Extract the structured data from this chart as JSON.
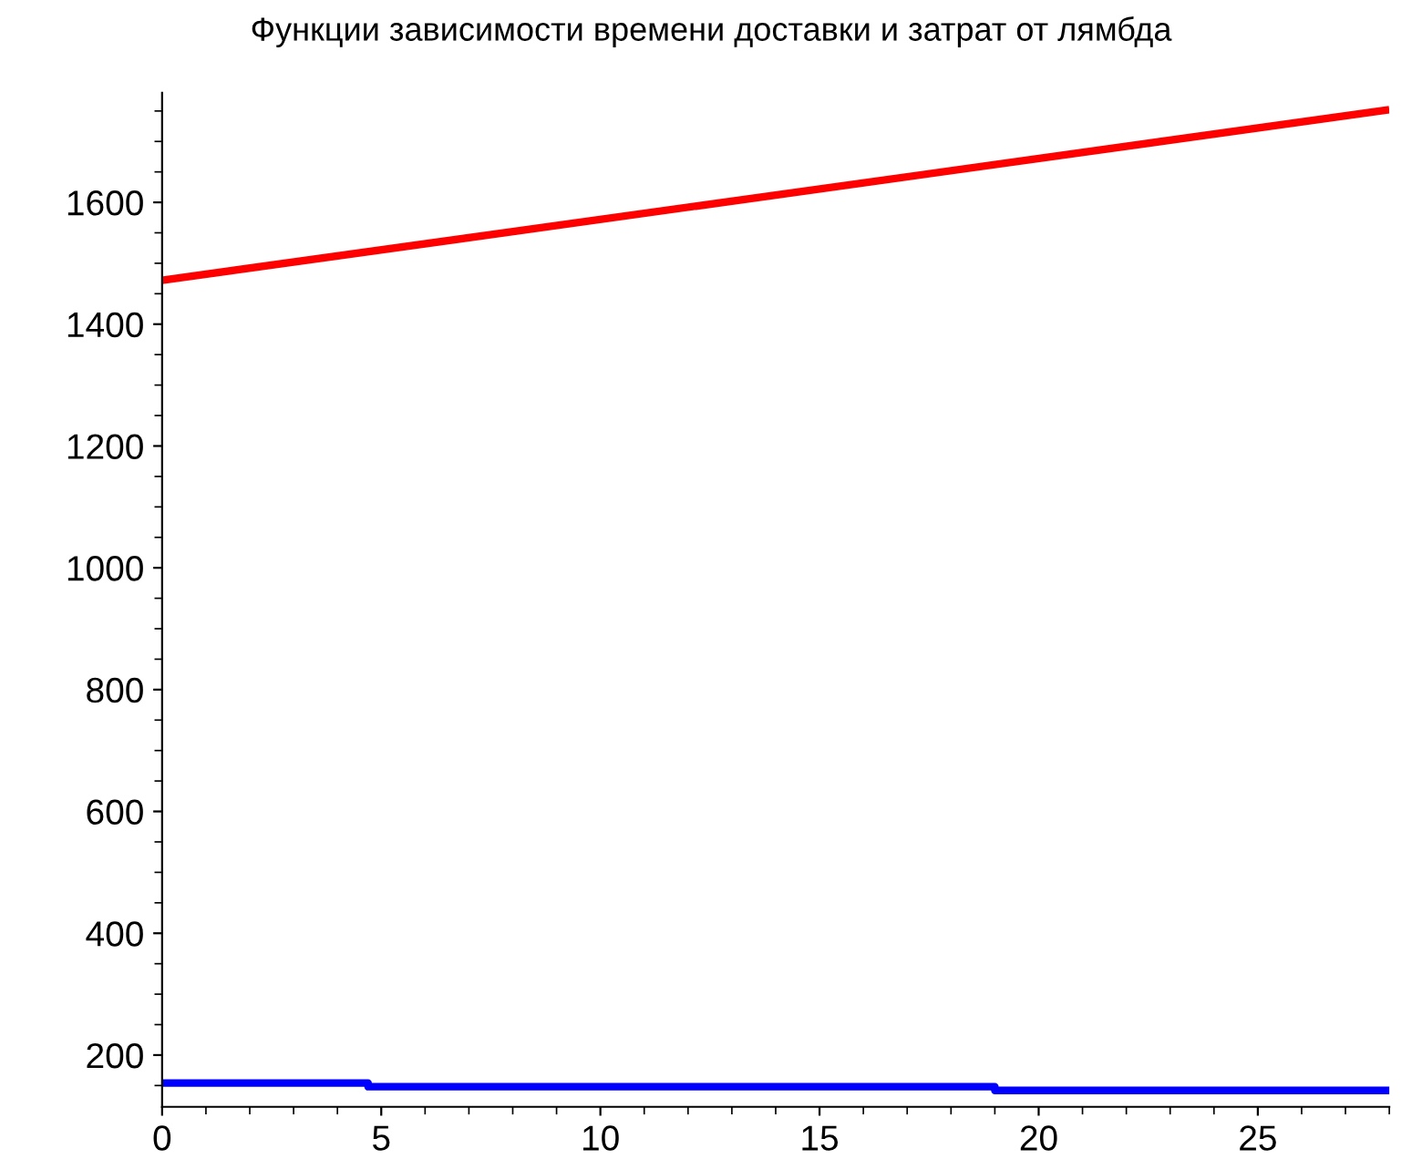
{
  "chart_data": {
    "type": "line",
    "title": "Функции зависимости времени доставки и затрат от лямбда",
    "series": [
      {
        "color": "#ff0000",
        "x": [
          0,
          28
        ],
        "values": [
          1472,
          1752
        ]
      },
      {
        "type": "step",
        "color": "#0000ff",
        "x": [
          0,
          4.7,
          19,
          28
        ],
        "values": [
          154,
          148,
          142,
          142
        ]
      }
    ],
    "xlim": [
      0,
      28
    ],
    "ylim": [
      115,
      1780
    ],
    "xticks": [
      0,
      5,
      10,
      15,
      20,
      25
    ],
    "yticks": [
      200,
      400,
      600,
      800,
      1000,
      1200,
      1400,
      1600
    ],
    "grid": false,
    "legend": false
  }
}
